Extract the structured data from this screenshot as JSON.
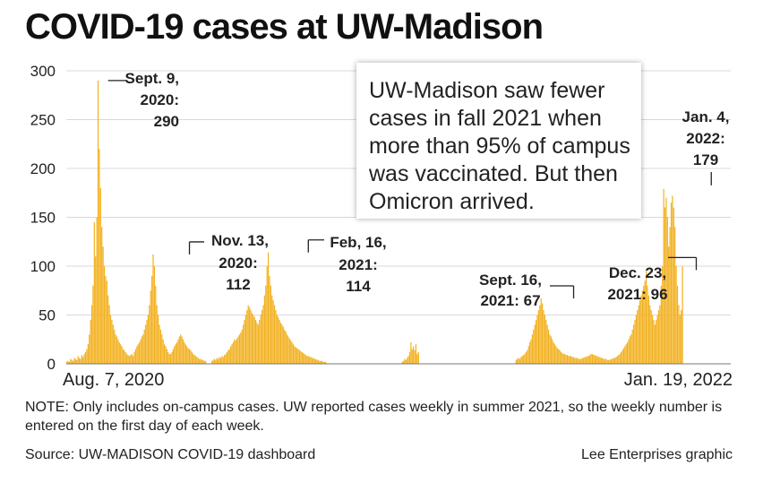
{
  "headline": "COVID-19 cases at UW-Madison",
  "callout": "UW-Madison saw fewer cases in fall 2021 when more than 95% of campus was vaccinated. But then Omicron arrived.",
  "note": "NOTE: Only includes on-campus cases. UW reported cases weekly in summer 2021, so the weekly number is entered on the first day of each week.",
  "source": "Source: UW-MADISON COVID-19 dashboard",
  "credit": "Lee Enterprises graphic",
  "colors": {
    "bars": "#f2b01e",
    "grid": "#d9d9d9",
    "axis": "#777777"
  },
  "chart_data": {
    "type": "bar",
    "title": "COVID-19 cases at UW-Madison",
    "xlabel": "",
    "ylabel": "",
    "ylim": [
      0,
      300
    ],
    "yticks": [
      0,
      50,
      100,
      150,
      200,
      250,
      300
    ],
    "grid": true,
    "x_start_label": "Aug. 7, 2020",
    "x_end_label": "Jan. 19, 2022",
    "x_start": "2020-08-07",
    "x_end": "2022-01-19",
    "daily_series": [
      {
        "from": "2020-08-07",
        "values": [
          2,
          3,
          2,
          5,
          4,
          3,
          6,
          5,
          4,
          8,
          6,
          5,
          9,
          7,
          10,
          12,
          15,
          20,
          30,
          45,
          60,
          80,
          145,
          110,
          150,
          290,
          220,
          180,
          140,
          120,
          100,
          90,
          85,
          70,
          60,
          50,
          45,
          40,
          35,
          30,
          28,
          25,
          22,
          20,
          18,
          15,
          14,
          12,
          10,
          9,
          8,
          9,
          10,
          8,
          12,
          15,
          18,
          20,
          22,
          25,
          28,
          30,
          35,
          40,
          45,
          50,
          60,
          75,
          90,
          112,
          100,
          80,
          60,
          50,
          40,
          35,
          30,
          25,
          20,
          18,
          15,
          12,
          10,
          10,
          12,
          15,
          18,
          20,
          22,
          25,
          28,
          30,
          28,
          25,
          22,
          20,
          18,
          16,
          15,
          14,
          12,
          10,
          9,
          8,
          7,
          6,
          5,
          5,
          4,
          4,
          3,
          3
        ]
      },
      {
        "from": "2020-12-01",
        "values": [
          3,
          4,
          5,
          4,
          6,
          5,
          7,
          6,
          8,
          7,
          9,
          10,
          12,
          14,
          15,
          18,
          20,
          22,
          25,
          24,
          26,
          28,
          30,
          32,
          35,
          40,
          45,
          50,
          55,
          60,
          58,
          55,
          52,
          50,
          48,
          45,
          42,
          40,
          45,
          50,
          55,
          60,
          70,
          80,
          100,
          114,
          90,
          80,
          70,
          65,
          60,
          55,
          50,
          48,
          45,
          42,
          40,
          38,
          35,
          33,
          30,
          28,
          26,
          24,
          22,
          20,
          18,
          17,
          16,
          15,
          14,
          13,
          12,
          11,
          10,
          9,
          8,
          8,
          7,
          7,
          6,
          6,
          5,
          5,
          4,
          4,
          3,
          3,
          3,
          2,
          2,
          2
        ]
      },
      {
        "from": "2021-05-02",
        "values": [
          2,
          3,
          5,
          4,
          6,
          8,
          12,
          22,
          15,
          18,
          14,
          20,
          10,
          12
        ]
      },
      {
        "from": "2021-08-01",
        "values": [
          4,
          5,
          6,
          5,
          7,
          8,
          9,
          10,
          12,
          14,
          18,
          22,
          25,
          30,
          35,
          40,
          45,
          50,
          55,
          60,
          67,
          62,
          55,
          50,
          45,
          40,
          35,
          30,
          28,
          25,
          22,
          20,
          18,
          16,
          15,
          14,
          12,
          11,
          10,
          10,
          9,
          9,
          8,
          8,
          8,
          7,
          7,
          6,
          6,
          6,
          5,
          5,
          5,
          6,
          6,
          7,
          7,
          8,
          8,
          9,
          10,
          10,
          9,
          9,
          8,
          8,
          7,
          7,
          6,
          6,
          5,
          5,
          5,
          4,
          4,
          4,
          5,
          5,
          6,
          6,
          7,
          8,
          9,
          10,
          12,
          14,
          16,
          18,
          20,
          22,
          25,
          28,
          30,
          35,
          40,
          45,
          50,
          55,
          60,
          65,
          70,
          75,
          80,
          85,
          96,
          80,
          70,
          60,
          55,
          50,
          45,
          40,
          45,
          50,
          55,
          60,
          80,
          100,
          179,
          160,
          170,
          150,
          120,
          140,
          165,
          172,
          160,
          140,
          100,
          80,
          60,
          50,
          55,
          100
        ]
      }
    ],
    "annotations": [
      {
        "date": "2020-09-09",
        "value": 290,
        "label": "Sept. 9, 2020: 290"
      },
      {
        "date": "2020-11-13",
        "value": 112,
        "label": "Nov. 13, 2020: 112"
      },
      {
        "date": "2021-02-16",
        "value": 114,
        "label": "Feb, 16, 2021: 114"
      },
      {
        "date": "2021-09-16",
        "value": 67,
        "label": "Sept. 16, 2021: 67"
      },
      {
        "date": "2021-12-23",
        "value": 96,
        "label": "Dec. 23, 2021: 96"
      },
      {
        "date": "2022-01-04",
        "value": 179,
        "label": "Jan. 4, 2022: 179"
      }
    ]
  }
}
